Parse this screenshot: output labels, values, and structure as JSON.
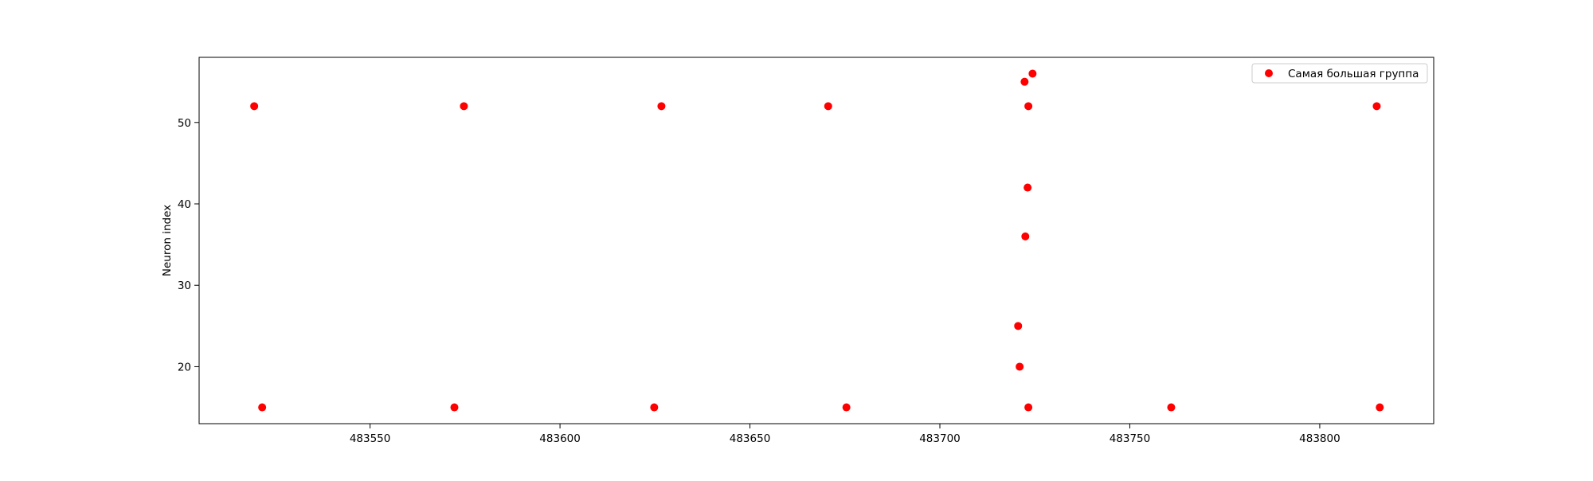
{
  "chart_data": {
    "type": "scatter",
    "title": "",
    "xlabel": "",
    "ylabel": "Neuron index",
    "xlim": [
      483505,
      483830
    ],
    "ylim": [
      13,
      58
    ],
    "x_ticks": [
      483550,
      483600,
      483650,
      483700,
      483750,
      483800
    ],
    "y_ticks": [
      20,
      30,
      40,
      50
    ],
    "grid": false,
    "legend_position": "top-right",
    "series": [
      {
        "name": "Самая большая группа",
        "color": "#ff0000",
        "marker": "circle",
        "points": [
          {
            "x": 483519.5,
            "y": 52
          },
          {
            "x": 483574.7,
            "y": 52
          },
          {
            "x": 483626.7,
            "y": 52
          },
          {
            "x": 483670.6,
            "y": 52
          },
          {
            "x": 483723.3,
            "y": 52
          },
          {
            "x": 483815.0,
            "y": 52
          },
          {
            "x": 483722.3,
            "y": 55
          },
          {
            "x": 483724.4,
            "y": 56
          },
          {
            "x": 483723.1,
            "y": 42
          },
          {
            "x": 483722.5,
            "y": 36
          },
          {
            "x": 483720.6,
            "y": 25
          },
          {
            "x": 483721.0,
            "y": 20
          },
          {
            "x": 483521.6,
            "y": 15
          },
          {
            "x": 483572.2,
            "y": 15
          },
          {
            "x": 483624.8,
            "y": 15
          },
          {
            "x": 483675.4,
            "y": 15
          },
          {
            "x": 483723.3,
            "y": 15
          },
          {
            "x": 483760.9,
            "y": 15
          },
          {
            "x": 483815.8,
            "y": 15
          }
        ]
      }
    ]
  }
}
